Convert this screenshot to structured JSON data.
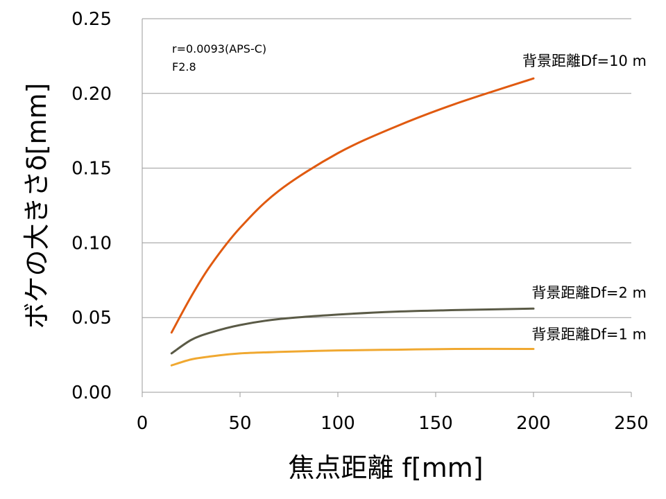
{
  "chart_data": {
    "type": "line",
    "xlabel": "焦点距離 f[mm]",
    "ylabel": "ボケの大きさδ[mm]",
    "xlim": [
      0,
      250
    ],
    "ylim": [
      0,
      0.25
    ],
    "x_ticks": [
      "0",
      "50",
      "100",
      "150",
      "200",
      "250"
    ],
    "y_ticks": [
      "0.00",
      "0.05",
      "0.10",
      "0.15",
      "0.20",
      "0.25"
    ],
    "grid": "horizontal",
    "annotations": [
      "r=0.0093(APS-C)",
      "F2.8"
    ],
    "series": [
      {
        "name": "背景距離Df=10 m",
        "color": "#e05a10",
        "x": [
          15,
          25,
          35,
          50,
          70,
          100,
          130,
          160,
          200
        ],
        "y": [
          0.04,
          0.064,
          0.085,
          0.11,
          0.135,
          0.16,
          0.178,
          0.193,
          0.21
        ]
      },
      {
        "name": "背景距離Df=2 m",
        "color": "#5a5a46",
        "x": [
          15,
          25,
          35,
          50,
          70,
          100,
          130,
          160,
          200
        ],
        "y": [
          0.026,
          0.035,
          0.04,
          0.045,
          0.049,
          0.052,
          0.054,
          0.055,
          0.056
        ]
      },
      {
        "name": "背景距離Df=1 m",
        "color": "#f0a830",
        "x": [
          15,
          25,
          35,
          50,
          70,
          100,
          130,
          160,
          200
        ],
        "y": [
          0.018,
          0.022,
          0.024,
          0.026,
          0.027,
          0.028,
          0.0285,
          0.029,
          0.029
        ]
      }
    ]
  }
}
